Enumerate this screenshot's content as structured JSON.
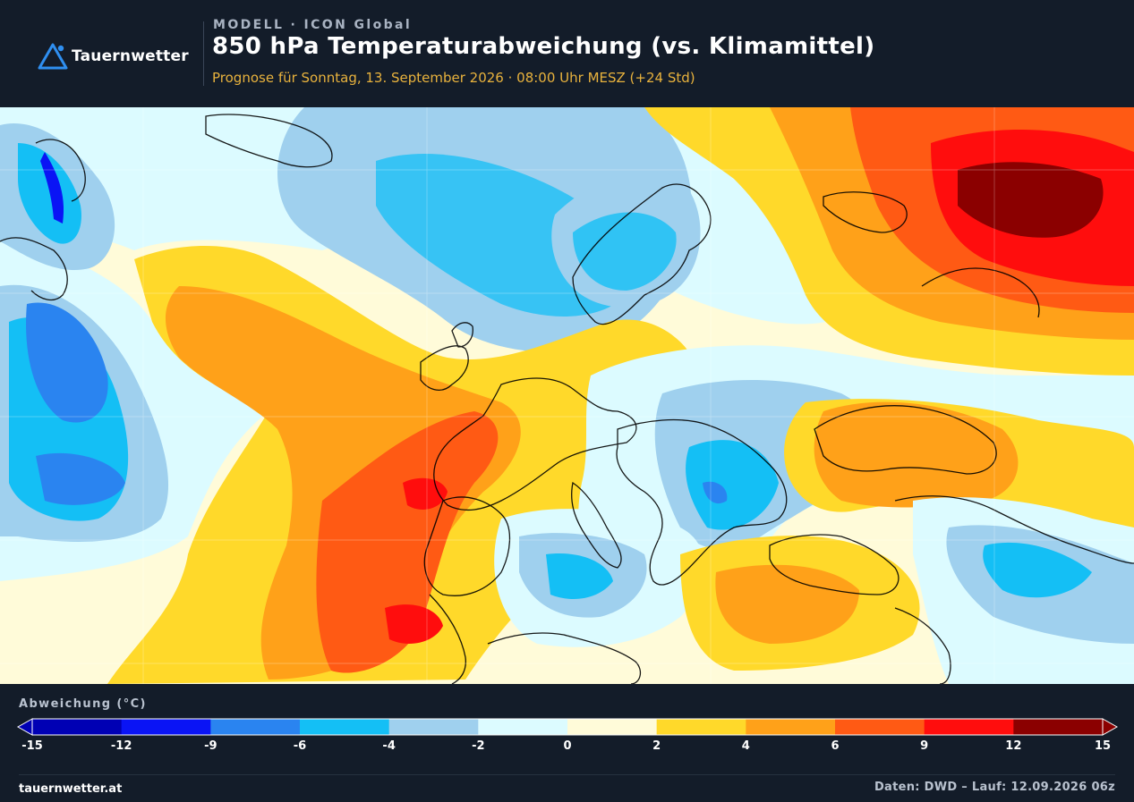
{
  "header": {
    "brand": "Tauernwetter",
    "model_line": "MODELL · ICON Global",
    "title": "850 hPa Temperaturabweichung (vs. Klimamittel)",
    "subtitle": "Prognose für Sonntag, 13. September 2026 · 08:00 Uhr MESZ  (+24 Std)"
  },
  "legend": {
    "title": "Abweichung (°C)",
    "ticks": [
      "-15",
      "-12",
      "-9",
      "-6",
      "-4",
      "-2",
      "0",
      "2",
      "4",
      "6",
      "9",
      "12",
      "15"
    ],
    "colors": [
      "#0000b4",
      "#0a14f5",
      "#2a84f0",
      "#14bff5",
      "#9fd0ee",
      "#dcfbff",
      "#fffbd9",
      "#ffd92a",
      "#ffa119",
      "#ff5a14",
      "#ff0d0d",
      "#8b0000"
    ]
  },
  "footer": {
    "site": "tauernwetter.at",
    "source": "Daten: DWD – Lauf: 12.09.2026 06z"
  },
  "map": {
    "layer": "850 hPa temperature anomaly",
    "palette": {
      "deep_blue": "#0a14f5",
      "blue": "#2a84f0",
      "cyan": "#14bff5",
      "light_blue": "#9fd0ee",
      "pale_blue": "#dcfbff",
      "cream": "#fffbd9",
      "yellow": "#ffd92a",
      "orange": "#ffa119",
      "red_orange": "#ff5a14",
      "red": "#ff0d0d",
      "dark_red": "#8b0000"
    }
  }
}
